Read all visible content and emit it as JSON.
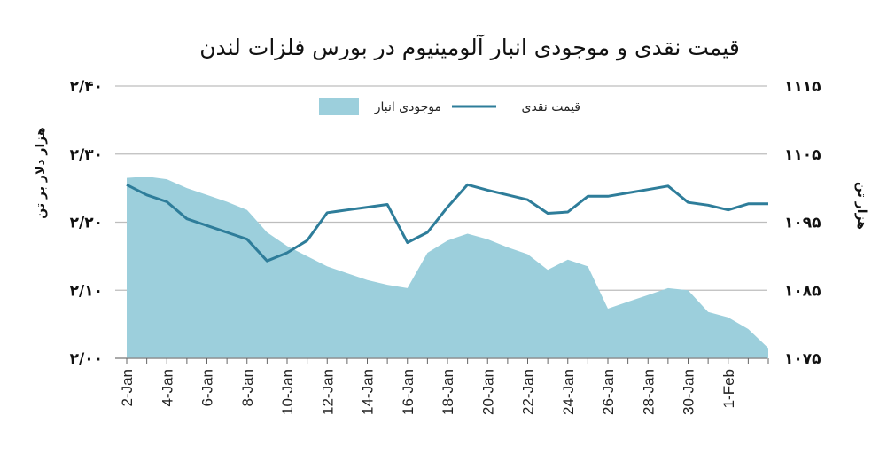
{
  "chart_data": {
    "type": "line",
    "title": "قیمت نقدی و موجودی انبار آلومینیوم در بورس فلزات لندن",
    "ylabel_left": "هزار دلار بر تن",
    "ylabel_right": "هزار تن",
    "ylim_left": [
      2.0,
      2.4
    ],
    "ylim_right": [
      1075,
      1115
    ],
    "yticks_left": [
      "۲/۰۰",
      "۲/۱۰",
      "۲/۲۰",
      "۲/۳۰",
      "۲/۴۰"
    ],
    "yticks_left_values": [
      2.0,
      2.1,
      2.2,
      2.3,
      2.4
    ],
    "yticks_right": [
      "۱۰۷۵",
      "۱۰۸۵",
      "۱۰۹۵",
      "۱۱۰۵",
      "۱۱۱۵"
    ],
    "yticks_right_values": [
      1075,
      1085,
      1095,
      1105,
      1115
    ],
    "x_tick_labels": [
      "2-Jan",
      "4-Jan",
      "6-Jan",
      "8-Jan",
      "10-Jan",
      "12-Jan",
      "14-Jan",
      "16-Jan",
      "18-Jan",
      "20-Jan",
      "22-Jan",
      "24-Jan",
      "26-Jan",
      "28-Jan",
      "30-Jan",
      "1-Feb"
    ],
    "x_range": [
      1,
      33
    ],
    "grid": true,
    "legend_position": "top",
    "series": [
      {
        "name": "قیمت نقدی",
        "kind": "line",
        "axis": "left",
        "color": "#2e7d9a",
        "x": [
          1,
          2,
          3,
          4,
          5,
          6,
          7,
          8,
          9,
          10,
          11,
          12,
          13,
          14,
          15,
          16,
          17,
          18,
          19,
          20,
          21,
          22,
          23,
          24,
          25,
          26,
          27,
          28,
          29,
          30,
          31,
          32,
          33
        ],
        "y": [
          2.255,
          2.24,
          2.23,
          2.205,
          2.195,
          2.185,
          2.175,
          2.143,
          2.155,
          2.173,
          2.214,
          2.218,
          2.222,
          2.226,
          2.17,
          2.185,
          2.222,
          2.255,
          2.247,
          2.24,
          2.233,
          2.213,
          2.215,
          2.238,
          2.238,
          2.243,
          2.248,
          2.253,
          2.229,
          2.225,
          2.218,
          2.227,
          2.227
        ]
      },
      {
        "name": "موجودی انبار",
        "kind": "area",
        "axis": "right",
        "color": "#9ccfdc",
        "x": [
          1,
          2,
          3,
          4,
          5,
          6,
          7,
          8,
          9,
          10,
          11,
          12,
          13,
          14,
          15,
          16,
          17,
          18,
          19,
          20,
          21,
          22,
          23,
          24,
          25,
          26,
          27,
          28,
          29,
          30,
          31,
          32,
          33
        ],
        "y": [
          1101.5,
          1101.7,
          1101.3,
          1100.0,
          1099.0,
          1098.0,
          1096.8,
          1093.5,
          1091.5,
          1090.0,
          1088.5,
          1087.5,
          1086.5,
          1085.8,
          1085.3,
          1090.5,
          1092.3,
          1093.3,
          1092.5,
          1091.3,
          1090.3,
          1088.0,
          1089.5,
          1088.5,
          1082.3,
          1083.3,
          1084.3,
          1085.3,
          1085.0,
          1081.8,
          1081.0,
          1079.3,
          1076.5
        ]
      }
    ]
  }
}
